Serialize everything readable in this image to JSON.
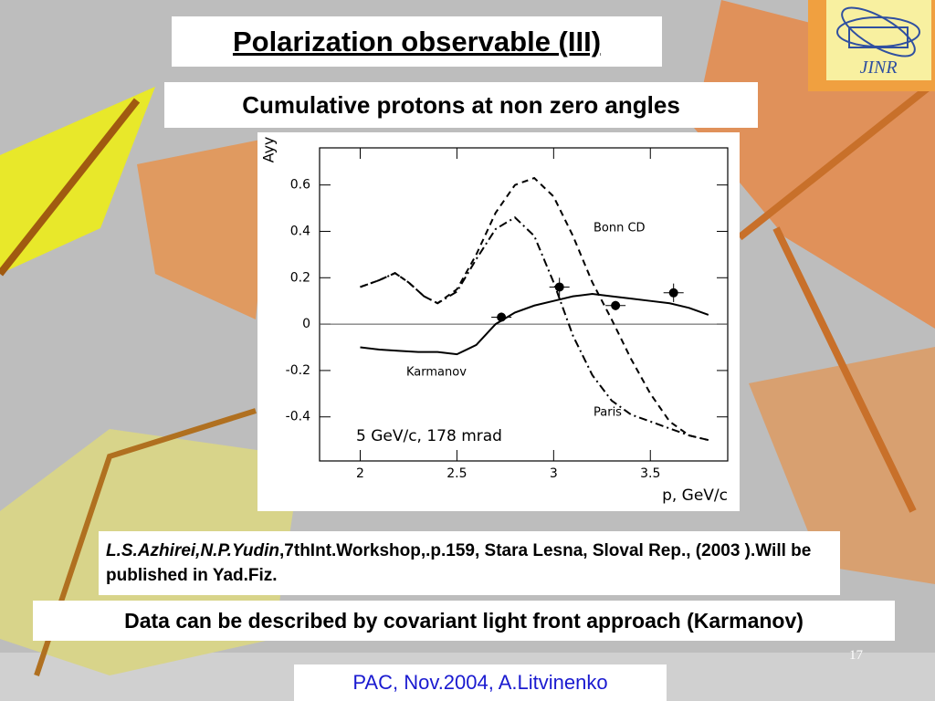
{
  "title": "Polarization observable (III)",
  "subtitle": "Cumulative protons at non zero angles",
  "reference": {
    "authors": "L.S.Azhirei,N.P.Yudin",
    "text": ",7thInt.Workshop,.p.159, Stara Lesna, Sloval Rep., (2003 ).Will be published in Yad.Fiz."
  },
  "note": "Data can be described by covariant light front approach (Karmanov)",
  "page_number": "17",
  "footer": "PAC, Nov.2004, A.Litvinenko",
  "logo": "JINR",
  "chart_data": {
    "type": "line",
    "y_label": "Ayy",
    "x_label": "p,  GeV/c",
    "annotation": "5 GeV/c,  178 mrad",
    "xlim": [
      1.79,
      3.9
    ],
    "ylim": [
      -0.59,
      0.76
    ],
    "xticks": [
      2,
      2.5,
      3,
      3.5
    ],
    "yticks": [
      -0.4,
      -0.2,
      0,
      0.2,
      0.4,
      0.6
    ],
    "reference_line": 0,
    "series": [
      {
        "name": "Bonn CD",
        "color": "#000000",
        "linestyle": "dashed",
        "x": [
          2,
          2.1,
          2.18,
          2.25,
          2.33,
          2.4,
          2.5,
          2.6,
          2.7,
          2.8,
          2.9,
          3.0,
          3.1,
          3.2,
          3.3,
          3.4,
          3.5,
          3.6,
          3.7,
          3.8
        ],
        "values": [
          0.16,
          0.19,
          0.22,
          0.18,
          0.12,
          0.09,
          0.15,
          0.3,
          0.48,
          0.6,
          0.63,
          0.55,
          0.38,
          0.18,
          0.02,
          -0.15,
          -0.3,
          -0.42,
          -0.48,
          -0.5
        ]
      },
      {
        "name": "Paris",
        "color": "#000000",
        "linestyle": "dashdot",
        "x": [
          2,
          2.1,
          2.18,
          2.25,
          2.33,
          2.4,
          2.5,
          2.6,
          2.7,
          2.8,
          2.9,
          3.0,
          3.1,
          3.2,
          3.3,
          3.4,
          3.5,
          3.6,
          3.7,
          3.8
        ],
        "values": [
          0.16,
          0.19,
          0.22,
          0.18,
          0.12,
          0.09,
          0.14,
          0.28,
          0.41,
          0.46,
          0.38,
          0.18,
          -0.05,
          -0.22,
          -0.33,
          -0.39,
          -0.42,
          -0.45,
          -0.48,
          -0.5
        ]
      },
      {
        "name": "Karmanov",
        "color": "#000000",
        "linestyle": "solid",
        "x": [
          2,
          2.1,
          2.2,
          2.3,
          2.4,
          2.5,
          2.6,
          2.7,
          2.8,
          2.9,
          3.0,
          3.1,
          3.2,
          3.3,
          3.4,
          3.5,
          3.6,
          3.7,
          3.8
        ],
        "values": [
          -0.1,
          -0.11,
          -0.115,
          -0.12,
          -0.12,
          -0.13,
          -0.09,
          0,
          0.05,
          0.08,
          0.1,
          0.12,
          0.13,
          0.12,
          0.11,
          0.1,
          0.09,
          0.07,
          0.04
        ]
      }
    ],
    "points": {
      "color": "#000000",
      "x": [
        2.73,
        3.03,
        3.32,
        3.62
      ],
      "values": [
        0.03,
        0.16,
        0.08,
        0.135
      ],
      "errors": [
        0.02,
        0.04,
        0.02,
        0.04
      ]
    }
  }
}
